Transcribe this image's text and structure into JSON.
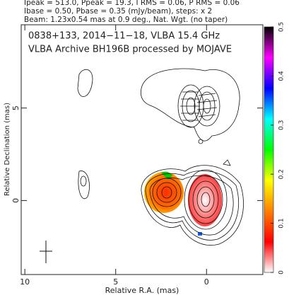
{
  "chart_data": {
    "type": "contour",
    "header": [
      "Ipeak = 513.0, Ppeak = 19.3, I RMS = 0.06, P RMS = 0.06",
      "Ibase = 0.50, Pbase = 0.35 (mJy/beam), steps: x 2",
      "Beam: 1.23x0.54 mas at 0.9 deg., Nat. Wgt. (no taper)"
    ],
    "title": [
      "0838+133, 2014−11−18, VLBA 15.4 GHz",
      "VLBA Archive BH196B processed by MOJAVE"
    ],
    "x_label": "Relative R.A. (mas)",
    "y_label": "Relative Declination (mas)",
    "xlim": [
      10.2,
      -3.1
    ],
    "xticks": [
      10,
      5,
      0
    ],
    "ylim": [
      -4,
      9.5
    ],
    "yticks": [
      0,
      5
    ],
    "colorbar": {
      "lim": [
        0,
        0.5
      ],
      "ticks": [
        0,
        0.1,
        0.2,
        0.3,
        0.4,
        0.5
      ],
      "colors": [
        "#ffffff",
        "#ff0000",
        "#ff8000",
        "#ffff00",
        "#00ff00",
        "#00ffff",
        "#0000ff",
        "#ff00ff",
        "#000000"
      ]
    }
  }
}
